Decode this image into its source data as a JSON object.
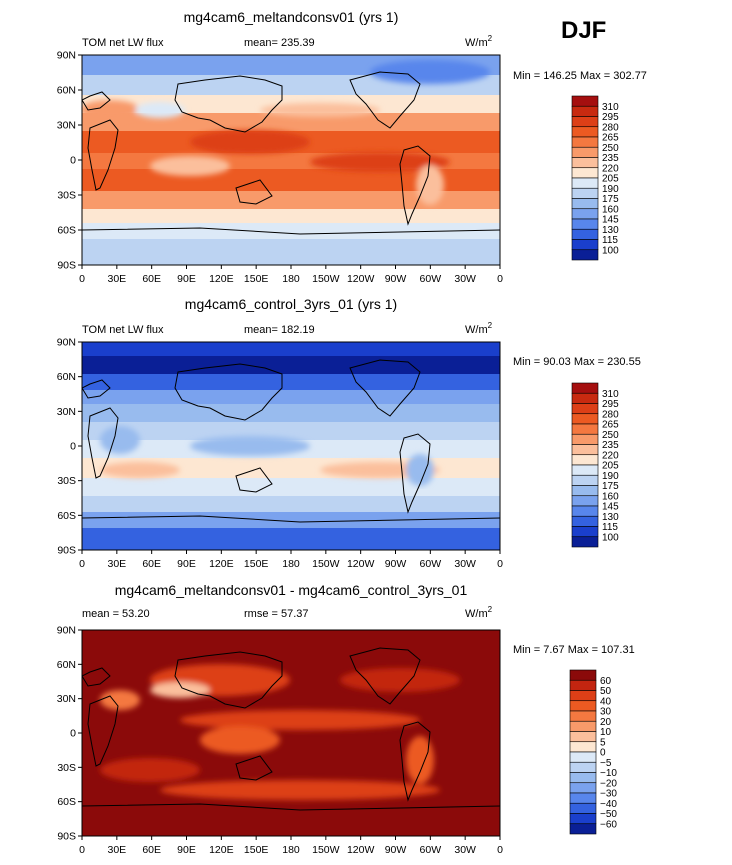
{
  "season": "DJF",
  "units": "W/m",
  "units_sup": "2",
  "lat_ticks": [
    "90N",
    "60N",
    "30N",
    "0",
    "30S",
    "60S",
    "90S"
  ],
  "lon_ticks": [
    "0",
    "30E",
    "60E",
    "90E",
    "120E",
    "150E",
    "180",
    "150W",
    "120W",
    "90W",
    "60W",
    "30W",
    "0"
  ],
  "chart_data": [
    {
      "type": "heatmap",
      "title": "mg4cam6_meltandconsv01 (yrs 1)",
      "left_label": "TOM net LW flux",
      "center_label": "mean= 235.39",
      "min_max": "Min = 146.25 Max = 302.77",
      "min": 146.25,
      "max": 302.77,
      "mean": 235.39,
      "colorbar_levels": [
        "310",
        "295",
        "280",
        "265",
        "250",
        "235",
        "220",
        "205",
        "190",
        "175",
        "160",
        "145",
        "130",
        "115",
        "100"
      ],
      "colorbar_colors": [
        "#a50f0f",
        "#c82a10",
        "#dd3f17",
        "#ec5a22",
        "#f47840",
        "#f89a6a",
        "#fbbf9c",
        "#fde7d2",
        "#dce9f7",
        "#bcd3f2",
        "#98bbee",
        "#7aa2ee",
        "#5886ec",
        "#3462e0",
        "#1a3fcc",
        "#0a1f96"
      ]
    },
    {
      "type": "heatmap",
      "title": "mg4cam6_control_3yrs_01 (yrs 1)",
      "left_label": "TOM net LW flux",
      "center_label": "mean= 182.19",
      "min_max": "Min =  90.03 Max = 230.55",
      "min": 90.03,
      "max": 230.55,
      "mean": 182.19,
      "colorbar_levels": [
        "310",
        "295",
        "280",
        "265",
        "250",
        "235",
        "220",
        "205",
        "190",
        "175",
        "160",
        "145",
        "130",
        "115",
        "100"
      ],
      "colorbar_colors": [
        "#a50f0f",
        "#c82a10",
        "#dd3f17",
        "#ec5a22",
        "#f47840",
        "#f89a6a",
        "#fbbf9c",
        "#fde7d2",
        "#dce9f7",
        "#bcd3f2",
        "#98bbee",
        "#7aa2ee",
        "#5886ec",
        "#3462e0",
        "#1a3fcc",
        "#0a1f96"
      ]
    },
    {
      "type": "heatmap",
      "title": "mg4cam6_meltandconsv01 - mg4cam6_control_3yrs_01",
      "left_label": "mean =  53.20",
      "center_label": "rmse =  57.37",
      "min_max": "Min =    7.67 Max = 107.31",
      "min": 7.67,
      "max": 107.31,
      "mean": 53.2,
      "rmse": 57.37,
      "colorbar_levels": [
        "60",
        "50",
        "40",
        "30",
        "20",
        "10",
        "5",
        "0",
        "−5",
        "−10",
        "−20",
        "−30",
        "−40",
        "−50",
        "−60"
      ],
      "colorbar_colors": [
        "#8b0a0a",
        "#c32510",
        "#dd3f17",
        "#ec5a22",
        "#f47840",
        "#f89a6a",
        "#fbbf9c",
        "#fde7d2",
        "#dce9f7",
        "#bcd3f2",
        "#98bbee",
        "#7aa2ee",
        "#5886ec",
        "#3462e0",
        "#1a3fcc",
        "#0a1f96"
      ]
    }
  ]
}
